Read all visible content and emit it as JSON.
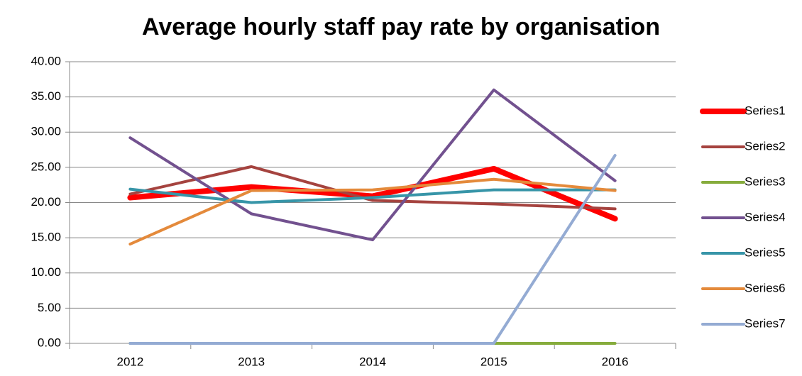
{
  "chart_data": {
    "type": "line",
    "title": "Average hourly staff pay rate by organisation",
    "categories": [
      "2012",
      "2013",
      "2014",
      "2015",
      "2016"
    ],
    "series": [
      {
        "name": "Series1",
        "color": "#ff0000",
        "values": [
          20.7,
          22.2,
          20.9,
          24.8,
          17.7
        ]
      },
      {
        "name": "Series2",
        "color": "#a5433f",
        "values": [
          21.2,
          25.1,
          20.3,
          19.8,
          19.1
        ]
      },
      {
        "name": "Series3",
        "color": "#86ac3c",
        "values": [
          0,
          0,
          0,
          0,
          0
        ]
      },
      {
        "name": "Series4",
        "color": "#72518f",
        "values": [
          29.2,
          18.4,
          14.7,
          36.0,
          23.1
        ]
      },
      {
        "name": "Series5",
        "color": "#3795a8",
        "values": [
          21.9,
          20.0,
          20.7,
          21.8,
          21.8
        ]
      },
      {
        "name": "Series6",
        "color": "#e48a3b",
        "values": [
          14.1,
          21.7,
          21.8,
          23.3,
          21.7
        ]
      },
      {
        "name": "Series7",
        "color": "#94abd3",
        "values": [
          0,
          0,
          0,
          0,
          26.7
        ]
      }
    ],
    "ylim": [
      0,
      40
    ],
    "yticks": [
      {
        "value": 0,
        "label": "0.00"
      },
      {
        "value": 5,
        "label": "5.00"
      },
      {
        "value": 10,
        "label": "10.00"
      },
      {
        "value": 15,
        "label": "15.00"
      },
      {
        "value": 20,
        "label": "20.00"
      },
      {
        "value": 25,
        "label": "25.00"
      },
      {
        "value": 30,
        "label": "30.00"
      },
      {
        "value": 35,
        "label": "35.00"
      },
      {
        "value": 40,
        "label": "40.00"
      }
    ],
    "grid": true,
    "legend": "right"
  }
}
